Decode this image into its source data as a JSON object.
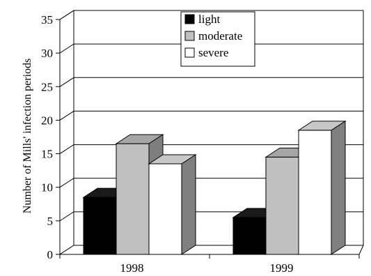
{
  "chart_data": {
    "type": "bar",
    "style": "3d-clustered-column",
    "categories": [
      "1998",
      "1999"
    ],
    "series": [
      {
        "name": "light",
        "values": [
          8.5,
          5.5
        ],
        "color": "#000000"
      },
      {
        "name": "moderate",
        "values": [
          16.5,
          14.5
        ],
        "color": "#c0c0c0"
      },
      {
        "name": "severe",
        "values": [
          13.5,
          18.5
        ],
        "color": "#ffffff"
      }
    ],
    "ylabel": "Number of Mills' infection periods",
    "xlabel": "",
    "title": "",
    "ylim": [
      0,
      35
    ],
    "yticks": [
      0,
      5,
      10,
      15,
      20,
      25,
      30,
      35
    ],
    "grid": "horizontal",
    "legend_position": "top-center"
  }
}
